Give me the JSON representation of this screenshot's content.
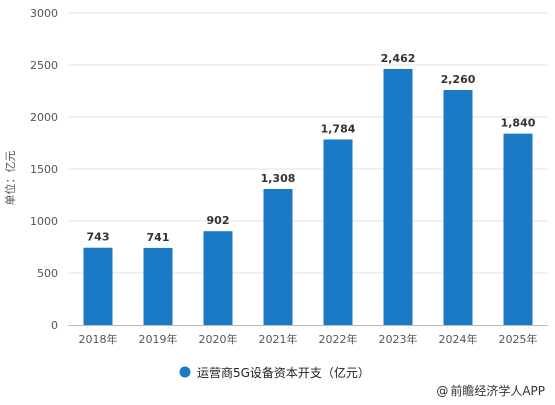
{
  "chart_data": {
    "type": "bar",
    "categories": [
      "2018年",
      "2019年",
      "2020年",
      "2021年",
      "2022年",
      "2023年",
      "2024年",
      "2025年"
    ],
    "series": [
      {
        "name": "运营商5G设备资本开支（亿元）",
        "values": [
          743,
          741,
          902,
          1308,
          1784,
          2462,
          2260,
          1840
        ]
      }
    ],
    "data_labels": [
      "743",
      "741",
      "902",
      "1,308",
      "1,784",
      "2,462",
      "2,260",
      "1,840"
    ],
    "ylabel": "单位：亿元",
    "ylim": [
      0,
      3000
    ],
    "yticks": [
      0,
      500,
      1000,
      1500,
      2000,
      2500,
      3000
    ],
    "grid": true,
    "legend_position": "bottom",
    "bar_color": "#1a7ac6"
  },
  "credit": {
    "at": "@",
    "text": "前瞻经济学人APP"
  }
}
